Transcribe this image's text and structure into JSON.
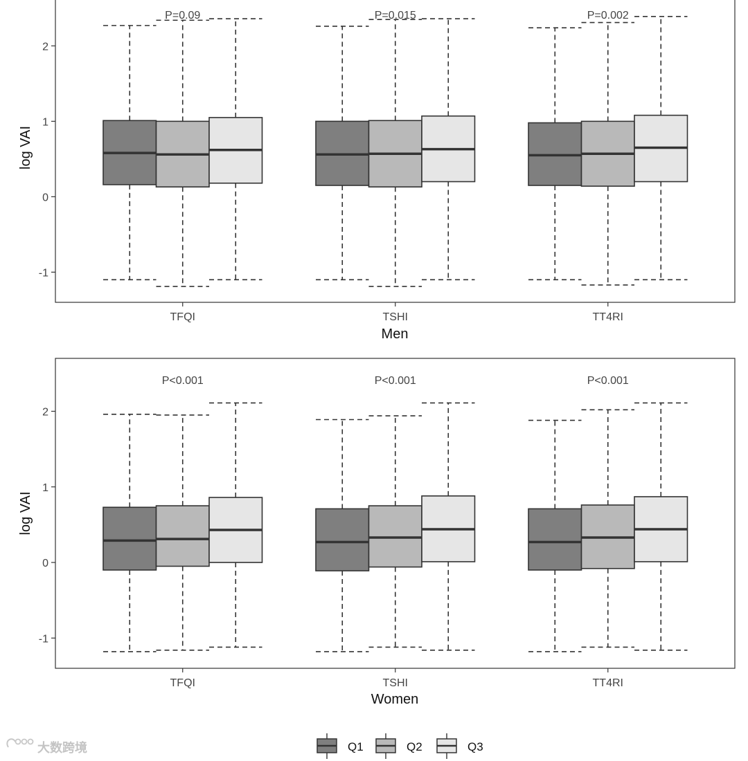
{
  "chart_data": {
    "type": "boxplot",
    "ylabel": "log VAI",
    "ylim": [
      -1.4,
      2.7
    ],
    "yticks": [
      -1,
      0,
      1,
      2
    ],
    "quartile_colors": {
      "Q1": "#7f7f7f",
      "Q2": "#b9b9b9",
      "Q3": "#e6e6e6"
    },
    "legend": {
      "position": "bottom",
      "entries": [
        "Q1",
        "Q2",
        "Q3"
      ]
    },
    "panels": [
      {
        "xlabel": "Men",
        "categories": [
          "TFQI",
          "TSHI",
          "TT4RI"
        ],
        "pvalues": [
          "P=0.09",
          "P=0.015",
          "P=0.002"
        ],
        "groups": [
          {
            "category": "TFQI",
            "series": [
              {
                "name": "Q1",
                "min": -1.1,
                "q1": 0.16,
                "median": 0.58,
                "q3": 1.01,
                "max": 2.27
              },
              {
                "name": "Q2",
                "min": -1.19,
                "q1": 0.13,
                "median": 0.56,
                "q3": 1.0,
                "max": 2.34
              },
              {
                "name": "Q3",
                "min": -1.1,
                "q1": 0.18,
                "median": 0.62,
                "q3": 1.05,
                "max": 2.36
              }
            ]
          },
          {
            "category": "TSHI",
            "series": [
              {
                "name": "Q1",
                "min": -1.1,
                "q1": 0.15,
                "median": 0.56,
                "q3": 1.0,
                "max": 2.26
              },
              {
                "name": "Q2",
                "min": -1.19,
                "q1": 0.13,
                "median": 0.57,
                "q3": 1.01,
                "max": 2.35
              },
              {
                "name": "Q3",
                "min": -1.1,
                "q1": 0.2,
                "median": 0.63,
                "q3": 1.07,
                "max": 2.36
              }
            ]
          },
          {
            "category": "TT4RI",
            "series": [
              {
                "name": "Q1",
                "min": -1.1,
                "q1": 0.15,
                "median": 0.55,
                "q3": 0.98,
                "max": 2.24
              },
              {
                "name": "Q2",
                "min": -1.17,
                "q1": 0.14,
                "median": 0.57,
                "q3": 1.0,
                "max": 2.31
              },
              {
                "name": "Q3",
                "min": -1.1,
                "q1": 0.2,
                "median": 0.65,
                "q3": 1.08,
                "max": 2.39
              }
            ]
          }
        ]
      },
      {
        "xlabel": "Women",
        "categories": [
          "TFQI",
          "TSHI",
          "TT4RI"
        ],
        "pvalues": [
          "P<0.001",
          "P<0.001",
          "P<0.001"
        ],
        "groups": [
          {
            "category": "TFQI",
            "series": [
              {
                "name": "Q1",
                "min": -1.18,
                "q1": -0.1,
                "median": 0.29,
                "q3": 0.73,
                "max": 1.96
              },
              {
                "name": "Q2",
                "min": -1.16,
                "q1": -0.05,
                "median": 0.31,
                "q3": 0.75,
                "max": 1.95
              },
              {
                "name": "Q3",
                "min": -1.12,
                "q1": 0.0,
                "median": 0.43,
                "q3": 0.86,
                "max": 2.11
              }
            ]
          },
          {
            "category": "TSHI",
            "series": [
              {
                "name": "Q1",
                "min": -1.18,
                "q1": -0.11,
                "median": 0.27,
                "q3": 0.71,
                "max": 1.89
              },
              {
                "name": "Q2",
                "min": -1.12,
                "q1": -0.06,
                "median": 0.33,
                "q3": 0.75,
                "max": 1.94
              },
              {
                "name": "Q3",
                "min": -1.16,
                "q1": 0.01,
                "median": 0.44,
                "q3": 0.88,
                "max": 2.11
              }
            ]
          },
          {
            "category": "TT4RI",
            "series": [
              {
                "name": "Q1",
                "min": -1.18,
                "q1": -0.1,
                "median": 0.27,
                "q3": 0.71,
                "max": 1.88
              },
              {
                "name": "Q2",
                "min": -1.12,
                "q1": -0.08,
                "median": 0.33,
                "q3": 0.76,
                "max": 2.02
              },
              {
                "name": "Q3",
                "min": -1.16,
                "q1": 0.01,
                "median": 0.44,
                "q3": 0.87,
                "max": 2.11
              }
            ]
          }
        ]
      }
    ]
  },
  "watermark": {
    "text": "大数跨境"
  }
}
